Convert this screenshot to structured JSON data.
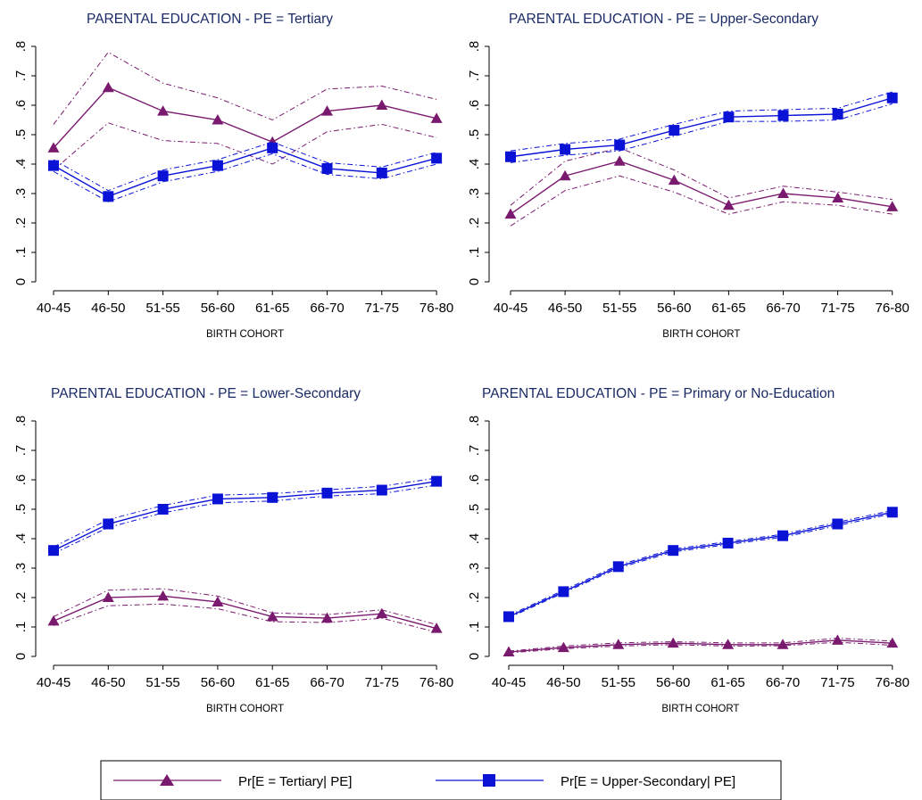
{
  "colors": {
    "tertiary": "#7a1a6e",
    "upper_secondary": "#0a12d6"
  },
  "legend": {
    "position": "bottom",
    "items": [
      {
        "label": "Pr[E = Tertiary| PE]",
        "color": "#7a1a6e",
        "marker": "triangle"
      },
      {
        "label": "Pr[E = Upper-Secondary| PE]",
        "color": "#0a12d6",
        "marker": "square"
      }
    ]
  },
  "chart_data": [
    {
      "type": "line",
      "title": "PARENTAL EDUCATION - PE = Tertiary",
      "xlabel": "BIRTH COHORT",
      "ylabel": "",
      "categories": [
        "40-45",
        "46-50",
        "51-55",
        "56-60",
        "61-65",
        "66-70",
        "71-75",
        "76-80"
      ],
      "yticks": [
        "0",
        ".1",
        ".2",
        ".3",
        ".4",
        ".5",
        ".6",
        ".7",
        ".8"
      ],
      "ylim": [
        0,
        0.8
      ],
      "grid": false,
      "series": [
        {
          "name": "Pr[E = Tertiary| PE]",
          "marker": "triangle",
          "values": [
            0.455,
            0.66,
            0.58,
            0.55,
            0.475,
            0.58,
            0.6,
            0.555
          ],
          "lower": [
            0.38,
            0.54,
            0.48,
            0.47,
            0.4,
            0.51,
            0.535,
            0.49
          ],
          "upper": [
            0.535,
            0.78,
            0.675,
            0.625,
            0.55,
            0.655,
            0.665,
            0.62
          ]
        },
        {
          "name": "Pr[E = Upper-Secondary| PE]",
          "marker": "square",
          "values": [
            0.395,
            0.29,
            0.36,
            0.395,
            0.455,
            0.385,
            0.37,
            0.42
          ],
          "lower": [
            0.375,
            0.272,
            0.34,
            0.375,
            0.435,
            0.365,
            0.35,
            0.4
          ],
          "upper": [
            0.415,
            0.31,
            0.38,
            0.415,
            0.475,
            0.405,
            0.39,
            0.44
          ]
        }
      ]
    },
    {
      "type": "line",
      "title": "PARENTAL EDUCATION - PE = Upper-Secondary",
      "xlabel": "BIRTH COHORT",
      "ylabel": "",
      "categories": [
        "40-45",
        "46-50",
        "51-55",
        "56-60",
        "61-65",
        "66-70",
        "71-75",
        "76-80"
      ],
      "yticks": [
        "0",
        ".1",
        ".2",
        ".3",
        ".4",
        ".5",
        ".6",
        ".7",
        ".8"
      ],
      "ylim": [
        0,
        0.8
      ],
      "grid": false,
      "series": [
        {
          "name": "Pr[E = Tertiary| PE]",
          "marker": "triangle",
          "values": [
            0.23,
            0.36,
            0.41,
            0.345,
            0.26,
            0.3,
            0.285,
            0.255
          ],
          "lower": [
            0.19,
            0.31,
            0.36,
            0.305,
            0.23,
            0.272,
            0.26,
            0.23
          ],
          "upper": [
            0.26,
            0.41,
            0.455,
            0.38,
            0.285,
            0.325,
            0.305,
            0.28
          ]
        },
        {
          "name": "Pr[E = Upper-Secondary| PE]",
          "marker": "square",
          "values": [
            0.425,
            0.45,
            0.465,
            0.515,
            0.56,
            0.565,
            0.57,
            0.625
          ],
          "lower": [
            0.405,
            0.43,
            0.445,
            0.495,
            0.545,
            0.545,
            0.55,
            0.605
          ],
          "upper": [
            0.445,
            0.47,
            0.485,
            0.535,
            0.58,
            0.585,
            0.59,
            0.645
          ]
        }
      ]
    },
    {
      "type": "line",
      "title": "PARENTAL EDUCATION - PE = Lower-Secondary",
      "xlabel": "BIRTH COHORT",
      "ylabel": "",
      "categories": [
        "40-45",
        "46-50",
        "51-55",
        "56-60",
        "61-65",
        "66-70",
        "71-75",
        "76-80"
      ],
      "yticks": [
        "0",
        ".1",
        ".2",
        ".3",
        ".4",
        ".5",
        ".6",
        ".7",
        ".8"
      ],
      "ylim": [
        0,
        0.8
      ],
      "grid": false,
      "series": [
        {
          "name": "Pr[E = Tertiary| PE]",
          "marker": "triangle",
          "values": [
            0.12,
            0.2,
            0.205,
            0.185,
            0.135,
            0.13,
            0.145,
            0.095
          ],
          "lower": [
            0.105,
            0.172,
            0.178,
            0.162,
            0.118,
            0.115,
            0.13,
            0.082
          ],
          "upper": [
            0.135,
            0.225,
            0.23,
            0.205,
            0.148,
            0.142,
            0.158,
            0.108
          ]
        },
        {
          "name": "Pr[E = Upper-Secondary| PE]",
          "marker": "square",
          "values": [
            0.36,
            0.45,
            0.5,
            0.535,
            0.54,
            0.555,
            0.565,
            0.595
          ],
          "lower": [
            0.35,
            0.438,
            0.488,
            0.522,
            0.528,
            0.545,
            0.553,
            0.582
          ],
          "upper": [
            0.372,
            0.465,
            0.513,
            0.548,
            0.553,
            0.566,
            0.578,
            0.606
          ]
        }
      ]
    },
    {
      "type": "line",
      "title": "PARENTAL EDUCATION - PE = Primary or No-Education",
      "xlabel": "BIRTH COHORT",
      "ylabel": "",
      "categories": [
        "40-45",
        "46-50",
        "51-55",
        "56-60",
        "61-65",
        "66-70",
        "71-75",
        "76-80"
      ],
      "yticks": [
        "0",
        ".1",
        ".2",
        ".3",
        ".4",
        ".5",
        ".6",
        ".7",
        ".8"
      ],
      "ylim": [
        0,
        0.8
      ],
      "grid": false,
      "series": [
        {
          "name": "Pr[E = Tertiary| PE]",
          "marker": "triangle",
          "values": [
            0.015,
            0.03,
            0.04,
            0.045,
            0.04,
            0.04,
            0.055,
            0.045
          ],
          "lower": [
            0.012,
            0.026,
            0.035,
            0.04,
            0.035,
            0.036,
            0.048,
            0.038
          ],
          "upper": [
            0.018,
            0.035,
            0.046,
            0.05,
            0.046,
            0.046,
            0.062,
            0.052
          ]
        },
        {
          "name": "Pr[E = Upper-Secondary| PE]",
          "marker": "square",
          "values": [
            0.135,
            0.22,
            0.305,
            0.36,
            0.385,
            0.41,
            0.45,
            0.49
          ],
          "lower": [
            0.131,
            0.216,
            0.3,
            0.355,
            0.38,
            0.405,
            0.444,
            0.485
          ],
          "upper": [
            0.139,
            0.225,
            0.31,
            0.365,
            0.39,
            0.415,
            0.456,
            0.496
          ]
        }
      ]
    }
  ]
}
